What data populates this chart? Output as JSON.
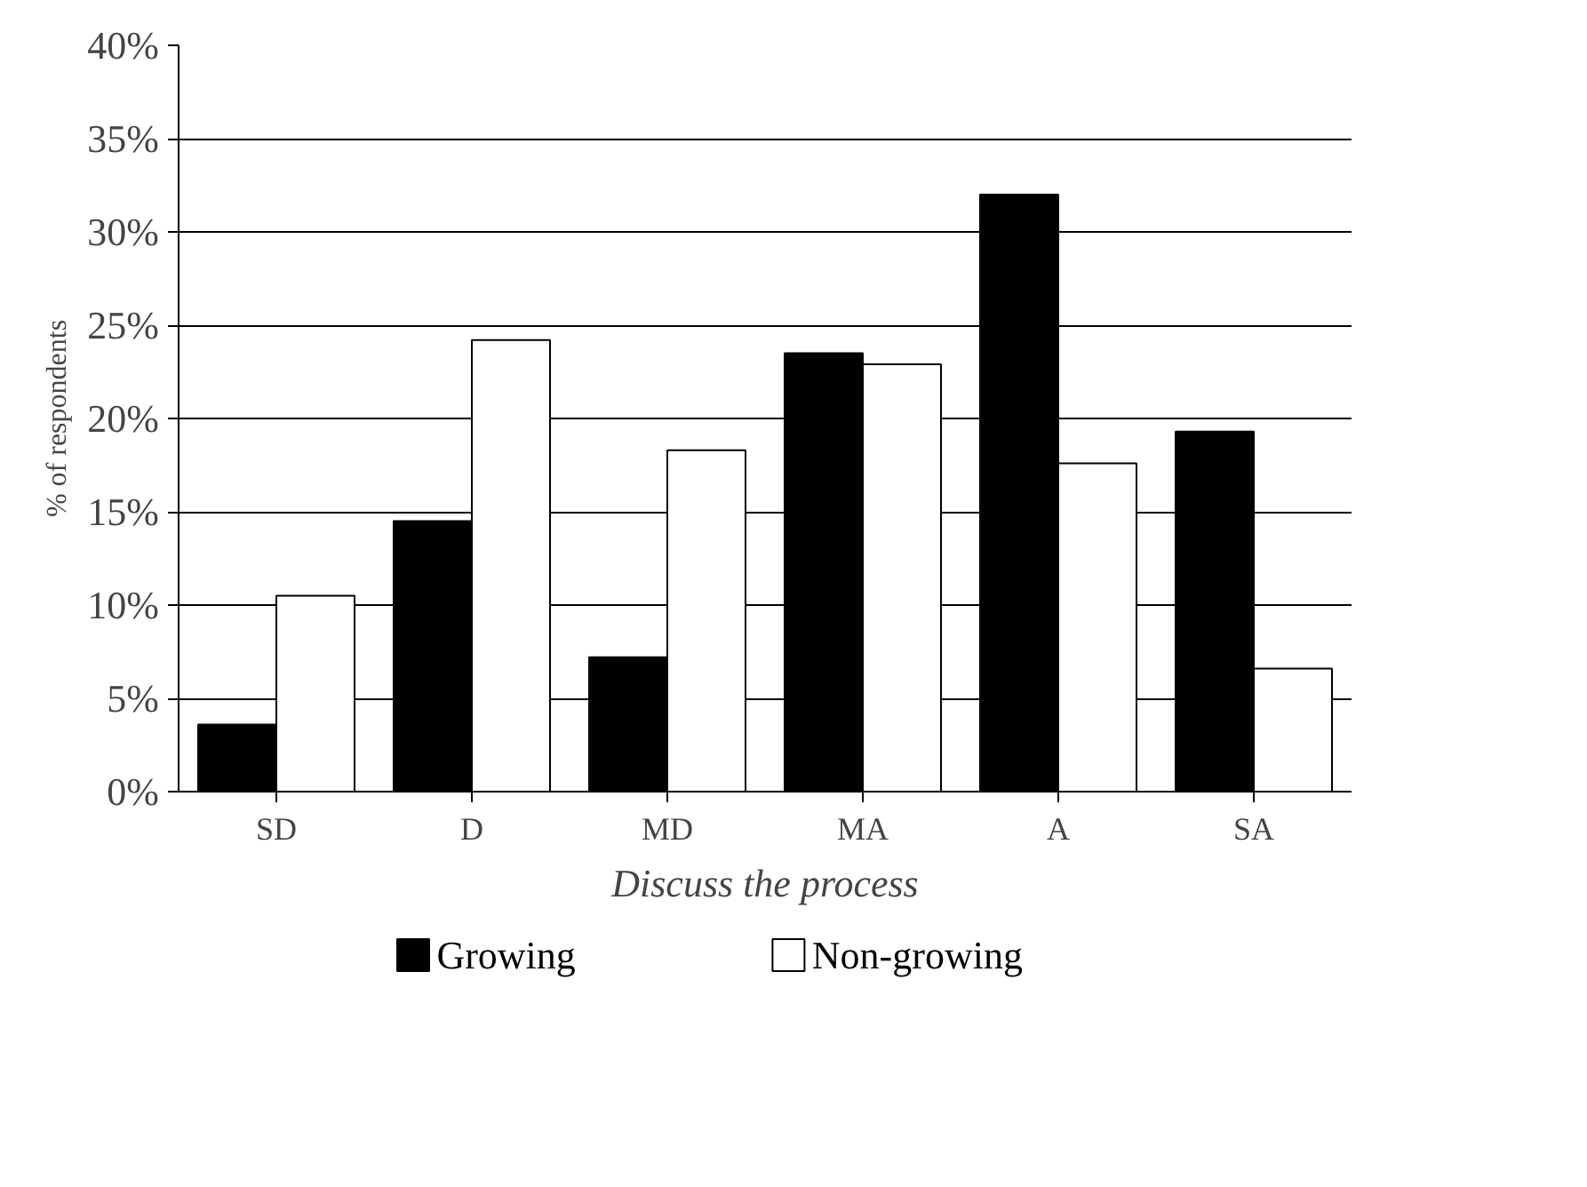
{
  "chart_data": {
    "type": "bar",
    "xlabel": "Discuss the process",
    "ylabel": "% of respondents",
    "categories": [
      "SD",
      "D",
      "MD",
      "MA",
      "A",
      "SA"
    ],
    "series": [
      {
        "name": "Growing",
        "color": "#000000",
        "values": [
          3.6,
          14.5,
          7.2,
          23.5,
          32.0,
          19.3
        ]
      },
      {
        "name": "Non-growing",
        "color": "#ffffff",
        "values": [
          10.5,
          24.2,
          18.3,
          22.9,
          17.6,
          6.6
        ]
      }
    ],
    "ylim": [
      0,
      40
    ],
    "yticks": [
      {
        "value": 0,
        "label": "0%"
      },
      {
        "value": 5,
        "label": "5%"
      },
      {
        "value": 10,
        "label": "10%"
      },
      {
        "value": 15,
        "label": "15%"
      },
      {
        "value": 20,
        "label": "20%"
      },
      {
        "value": 25,
        "label": "25%"
      },
      {
        "value": 30,
        "label": "30%"
      },
      {
        "value": 35,
        "label": "35%"
      },
      {
        "value": 40,
        "label": "40%"
      }
    ],
    "grid": "y",
    "legend": "bottom"
  }
}
